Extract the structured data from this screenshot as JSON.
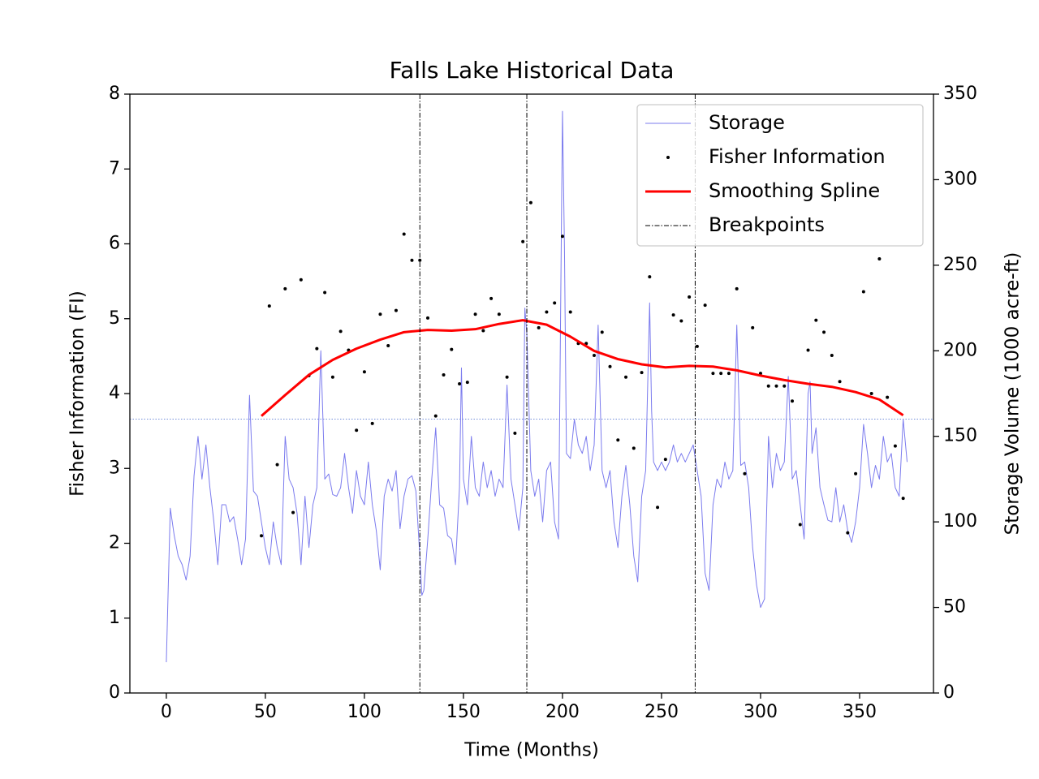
{
  "chart_data": {
    "type": "line",
    "title": "Falls Lake Historical Data",
    "x_label": "Time (Months)",
    "y_label": "Fisher Information (FI)",
    "y2_label": "Storage Volume (1000 acre-ft)",
    "xlim": [
      -18.4,
      387.3
    ],
    "xticks": [
      0,
      50,
      100,
      150,
      200,
      250,
      300,
      350
    ],
    "ylim": [
      0,
      8
    ],
    "yticks": [
      0,
      1,
      2,
      3,
      4,
      5,
      6,
      7,
      8
    ],
    "y2lim": [
      0,
      350
    ],
    "y2ticks": [
      0,
      50,
      100,
      150,
      200,
      250,
      300,
      350
    ],
    "legend": "upper right",
    "reference_line": {
      "value": 160,
      "axis": "y2",
      "color": "#4466cc"
    },
    "series": [
      {
        "name": "Storage",
        "type": "line",
        "axis": "y2",
        "color": "#7b7bee",
        "x": [
          0,
          2,
          4,
          6,
          8,
          10,
          12,
          14,
          16,
          18,
          20,
          22,
          24,
          26,
          28,
          30,
          32,
          34,
          36,
          38,
          40,
          42,
          44,
          46,
          48,
          50,
          52,
          54,
          56,
          58,
          60,
          62,
          64,
          66,
          68,
          70,
          72,
          74,
          76,
          78,
          80,
          82,
          84,
          86,
          88,
          90,
          92,
          94,
          96,
          98,
          100,
          102,
          104,
          106,
          108,
          110,
          112,
          114,
          116,
          118,
          120,
          122,
          124,
          126,
          128,
          129,
          130,
          132,
          134,
          136,
          138,
          140,
          142,
          144,
          146,
          148,
          149,
          150,
          152,
          154,
          156,
          158,
          160,
          162,
          164,
          166,
          168,
          170,
          172,
          174,
          176,
          178,
          180,
          181,
          182,
          184,
          186,
          188,
          190,
          192,
          194,
          196,
          198,
          200,
          201,
          202,
          204,
          206,
          208,
          210,
          212,
          214,
          216,
          218,
          220,
          222,
          224,
          226,
          228,
          230,
          232,
          234,
          236,
          238,
          240,
          242,
          244,
          245,
          246,
          248,
          250,
          252,
          254,
          256,
          258,
          260,
          262,
          264,
          266,
          268,
          270,
          272,
          274,
          276,
          278,
          280,
          282,
          284,
          286,
          288,
          290,
          292,
          294,
          296,
          298,
          300,
          302,
          304,
          306,
          308,
          310,
          312,
          314,
          316,
          318,
          320,
          322,
          324,
          325,
          326,
          328,
          330,
          332,
          334,
          336,
          338,
          340,
          342,
          344,
          346,
          348,
          350,
          352,
          354,
          356,
          358,
          360,
          362,
          364,
          366,
          368,
          370,
          372,
          374
        ],
        "values": [
          18,
          108,
          92,
          80,
          75,
          66,
          80,
          127,
          150,
          125,
          145,
          120,
          100,
          75,
          110,
          110,
          100,
          103,
          90,
          75,
          90,
          174,
          118,
          115,
          100,
          85,
          75,
          100,
          85,
          75,
          150,
          125,
          120,
          105,
          75,
          115,
          85,
          110,
          120,
          200,
          125,
          128,
          116,
          115,
          120,
          140,
          120,
          105,
          130,
          115,
          110,
          135,
          110,
          95,
          72,
          115,
          125,
          118,
          130,
          96,
          115,
          125,
          127,
          118,
          80,
          57,
          60,
          90,
          125,
          155,
          110,
          108,
          92,
          90,
          75,
          120,
          190,
          125,
          110,
          150,
          120,
          115,
          135,
          120,
          130,
          115,
          125,
          120,
          180,
          125,
          110,
          95,
          120,
          225,
          210,
          130,
          115,
          125,
          100,
          130,
          135,
          100,
          90,
          340,
          260,
          140,
          137,
          160,
          145,
          140,
          150,
          130,
          145,
          215,
          130,
          120,
          130,
          100,
          85,
          115,
          133,
          110,
          80,
          65,
          115,
          130,
          228,
          165,
          135,
          130,
          135,
          130,
          135,
          145,
          135,
          140,
          135,
          140,
          145,
          130,
          115,
          70,
          60,
          110,
          125,
          120,
          135,
          125,
          130,
          215,
          133,
          135,
          120,
          85,
          63,
          50,
          55,
          150,
          120,
          140,
          130,
          135,
          185,
          125,
          130,
          110,
          90,
          175,
          182,
          140,
          155,
          120,
          110,
          101,
          100,
          120,
          100,
          110,
          95,
          88,
          100,
          120,
          157,
          140,
          120,
          133,
          125,
          150,
          135,
          140,
          120,
          115,
          160,
          135
        ]
      },
      {
        "name": "Fisher Information",
        "type": "scatter",
        "color": "#000000",
        "x": [
          48,
          52,
          56,
          60,
          64,
          68,
          72,
          76,
          80,
          84,
          88,
          92,
          96,
          100,
          104,
          108,
          112,
          116,
          120,
          124,
          128,
          132,
          136,
          140,
          144,
          148,
          152,
          156,
          160,
          164,
          168,
          172,
          176,
          180,
          184,
          188,
          192,
          196,
          200,
          204,
          208,
          212,
          216,
          220,
          224,
          228,
          232,
          236,
          240,
          244,
          248,
          252,
          256,
          260,
          264,
          268,
          272,
          276,
          280,
          284,
          288,
          292,
          296,
          300,
          304,
          308,
          312,
          316,
          320,
          324,
          328,
          332,
          336,
          340,
          344,
          348,
          352,
          356,
          360,
          364,
          368,
          372
        ],
        "values": [
          2.1,
          5.17,
          3.05,
          5.4,
          2.41,
          5.52,
          4.24,
          4.6,
          5.35,
          4.22,
          4.83,
          4.58,
          3.51,
          4.29,
          3.6,
          5.06,
          4.64,
          5.11,
          6.13,
          5.78,
          5.78,
          5.01,
          3.7,
          4.25,
          4.59,
          4.13,
          4.15,
          5.06,
          4.84,
          5.27,
          5.06,
          4.22,
          3.47,
          6.03,
          6.55,
          4.88,
          5.09,
          5.21,
          6.1,
          5.09,
          4.67,
          4.67,
          4.51,
          4.82,
          4.36,
          3.38,
          4.22,
          3.27,
          4.28,
          5.56,
          2.48,
          3.12,
          5.05,
          4.97,
          5.29,
          4.63,
          5.18,
          4.27,
          4.27,
          4.27,
          5.4,
          2.93,
          4.88,
          4.27,
          4.1,
          4.1,
          4.1,
          3.9,
          2.25,
          4.58,
          4.98,
          4.82,
          4.51,
          4.16,
          2.14,
          2.93,
          5.36,
          4.0,
          5.8,
          3.95,
          3.3,
          2.6
        ]
      },
      {
        "name": "Smoothing Spline",
        "type": "line",
        "color": "#ff0000",
        "x": [
          48,
          60,
          72,
          84,
          96,
          108,
          120,
          132,
          144,
          156,
          168,
          180,
          192,
          204,
          216,
          228,
          240,
          252,
          264,
          276,
          288,
          300,
          312,
          324,
          336,
          348,
          360,
          372
        ],
        "values": [
          3.7,
          3.98,
          4.25,
          4.45,
          4.6,
          4.72,
          4.82,
          4.85,
          4.84,
          4.86,
          4.93,
          4.98,
          4.92,
          4.76,
          4.57,
          4.46,
          4.39,
          4.35,
          4.37,
          4.36,
          4.31,
          4.24,
          4.18,
          4.13,
          4.09,
          4.02,
          3.92,
          3.71
        ]
      },
      {
        "name": "Breakpoints",
        "type": "vline",
        "color": "#000000",
        "x": [
          128,
          182,
          267
        ]
      }
    ]
  }
}
